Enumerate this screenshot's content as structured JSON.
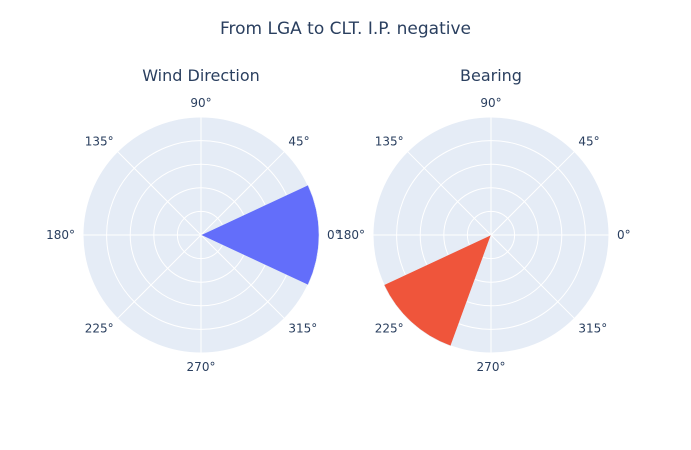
{
  "title": "From LGA to CLT. I.P. negative",
  "chart_data": [
    {
      "type": "barpolar",
      "title": "Wind Direction",
      "angular_axis": {
        "tick_labels": [
          "0°",
          "45°",
          "90°",
          "135°",
          "180°",
          "225°",
          "270°",
          "315°"
        ],
        "tick_values": [
          0,
          45,
          90,
          135,
          180,
          225,
          270,
          315
        ],
        "direction": "counterclockwise",
        "rotation": 0
      },
      "bars": [
        {
          "theta_start": -25,
          "theta_end": 25,
          "r": 1.0,
          "color": "#636efa"
        }
      ]
    },
    {
      "type": "barpolar",
      "title": "Bearing",
      "angular_axis": {
        "tick_labels": [
          "0°",
          "45°",
          "90°",
          "135°",
          "180°",
          "225°",
          "270°",
          "315°"
        ],
        "tick_values": [
          0,
          45,
          90,
          135,
          180,
          225,
          270,
          315
        ],
        "direction": "counterclockwise",
        "rotation": 0
      },
      "bars": [
        {
          "theta_start": 205,
          "theta_end": 250,
          "r": 1.0,
          "color": "#ef553b"
        }
      ]
    }
  ]
}
